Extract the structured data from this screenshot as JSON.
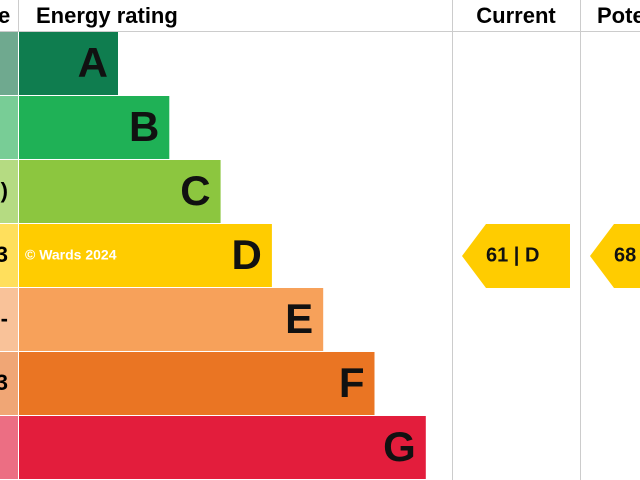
{
  "header": {
    "left": "e",
    "title": "Energy rating",
    "current": "Current",
    "potential": "Potential"
  },
  "bands": [
    {
      "letter": "A",
      "color": "#0f7d4f",
      "side_color": "#6fa98f",
      "side_text": null
    },
    {
      "letter": "B",
      "color": "#1fb156",
      "side_color": "#78cd96",
      "side_text": null
    },
    {
      "letter": "C",
      "color": "#8cc63f",
      "side_color": "#b5db82",
      "side_text": ")"
    },
    {
      "letter": "D",
      "color": "#ffcc00",
      "side_color": "#ffdf5c",
      "side_text": "3"
    },
    {
      "letter": "E",
      "color": "#f7a15a",
      "side_color": "#f9c299",
      "side_text": "-"
    },
    {
      "letter": "F",
      "color": "#ea7523",
      "side_color": "#f0a675",
      "side_text": "3"
    },
    {
      "letter": "G",
      "color": "#e31d3c",
      "side_color": "#ec6e83",
      "side_text": null
    }
  ],
  "watermark": "© Wards 2024",
  "current": {
    "label": "61 | D",
    "band": 3
  },
  "potential": {
    "label": "68",
    "band": 3
  }
}
